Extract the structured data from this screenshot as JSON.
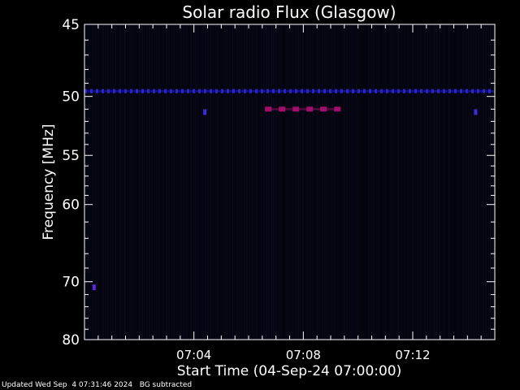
{
  "chart_data": {
    "type": "heatmap",
    "title": "Solar radio Flux (Glasgow)",
    "xlabel": "Start Time (04-Sep-24 07:00:00)",
    "ylabel": "Frequency [MHz]",
    "x_unit": "minutes after 07:00:00",
    "xlim": [
      0,
      15
    ],
    "ylim_inverted": [
      45,
      80
    ],
    "y_scale": "reciprocal",
    "x_ticks": [
      {
        "value": 4,
        "label": "07:04"
      },
      {
        "value": 8,
        "label": "07:08"
      },
      {
        "value": 12,
        "label": "07:12"
      }
    ],
    "y_ticks": [
      {
        "value": 45,
        "label": "45"
      },
      {
        "value": 50,
        "label": "50"
      },
      {
        "value": 55,
        "label": "55"
      },
      {
        "value": 60,
        "label": "60"
      },
      {
        "value": 70,
        "label": "70"
      },
      {
        "value": 80,
        "label": "80"
      }
    ],
    "background_color": "#04040e",
    "features": [
      {
        "kind": "band",
        "frequency": 49.6,
        "x_start": 0.0,
        "x_end": 15.0,
        "color": "#2a22d8",
        "intensity": "low"
      },
      {
        "kind": "band",
        "frequency": 51.0,
        "x_start": 6.6,
        "x_end": 9.3,
        "color": "#a0106a",
        "intensity": "high"
      },
      {
        "kind": "point",
        "frequency": 51.2,
        "x": 4.4,
        "color": "#3a2ae0"
      },
      {
        "kind": "point",
        "frequency": 51.2,
        "x": 14.3,
        "color": "#3a2ae0"
      },
      {
        "kind": "point",
        "frequency": 70.8,
        "x": 0.35,
        "color": "#5a28e0"
      }
    ]
  },
  "footer": {
    "updated": "Updated Wed Sep  4 07:31:46 2024",
    "note": "BG subtracted"
  }
}
